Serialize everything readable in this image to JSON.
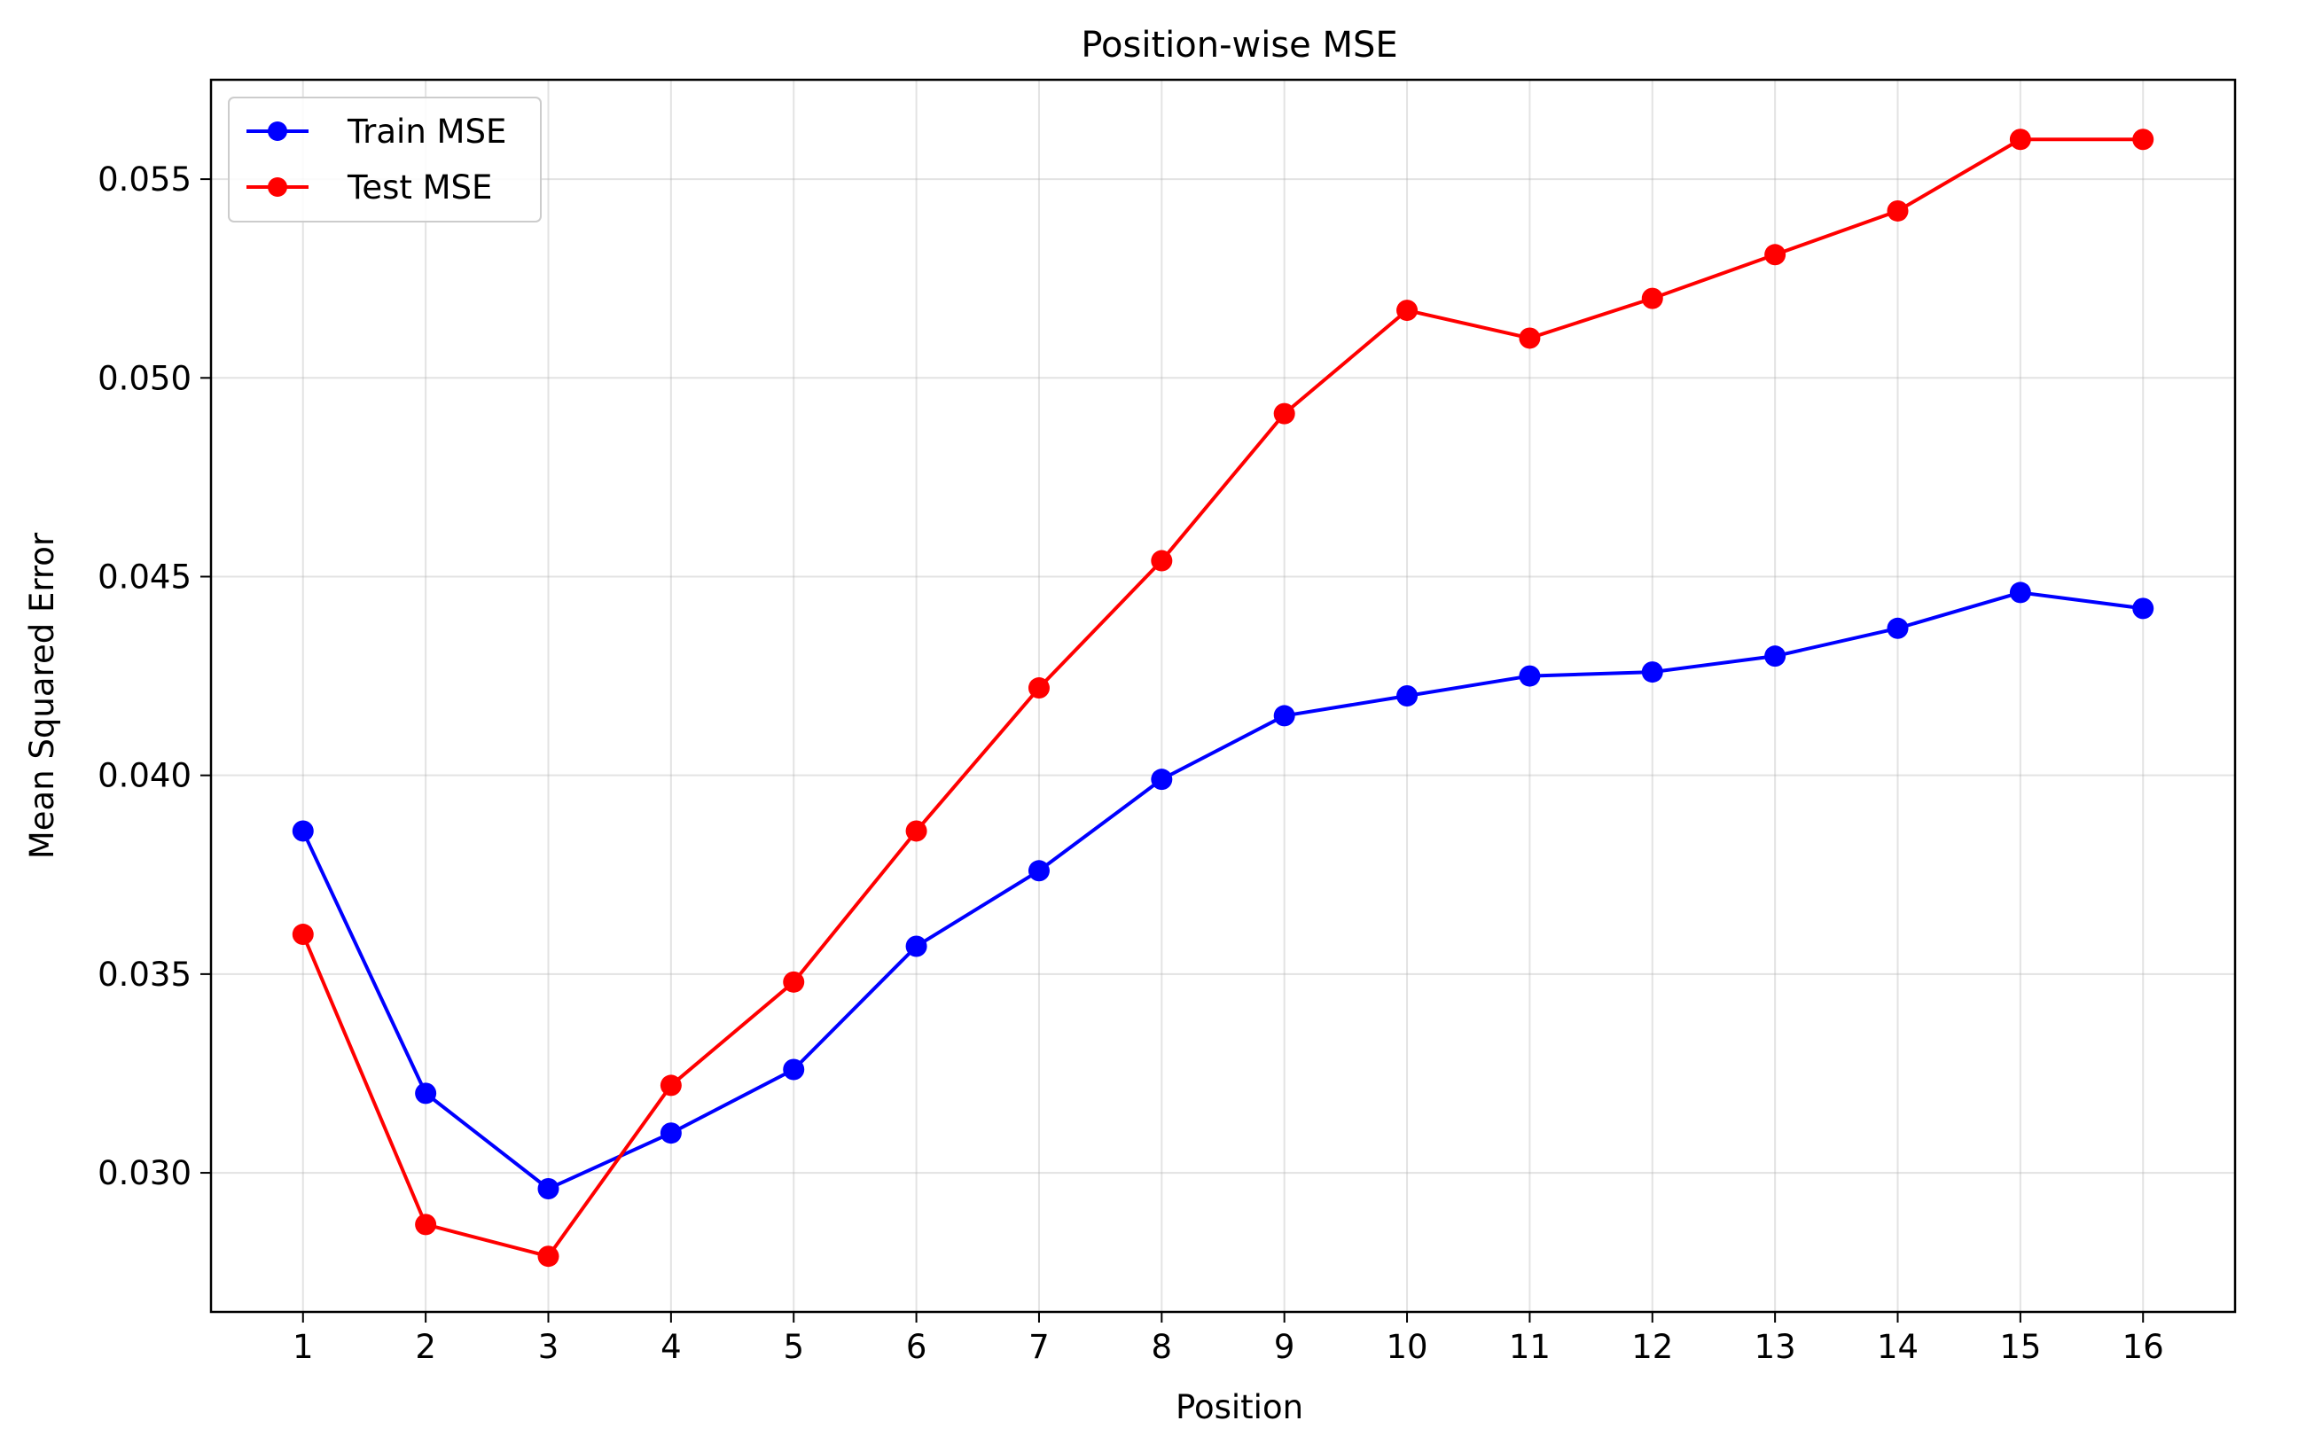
{
  "chart_data": {
    "type": "line",
    "title": "Position-wise MSE",
    "xlabel": "Position",
    "ylabel": "Mean Squared Error",
    "x": [
      1,
      2,
      3,
      4,
      5,
      6,
      7,
      8,
      9,
      10,
      11,
      12,
      13,
      14,
      15,
      16
    ],
    "xlim": [
      0.25,
      16.75
    ],
    "ylim": [
      0.0265,
      0.0575
    ],
    "yticks": [
      "0.030",
      "0.035",
      "0.040",
      "0.045",
      "0.050",
      "0.055"
    ],
    "ytick_values": [
      0.03,
      0.035,
      0.04,
      0.045,
      0.05,
      0.055
    ],
    "grid": true,
    "legend_position": "top-left",
    "series": [
      {
        "name": "Train MSE",
        "color": "#0000ff",
        "marker": "circle",
        "values": [
          0.0386,
          0.032,
          0.0296,
          0.031,
          0.0326,
          0.0357,
          0.0376,
          0.0399,
          0.0415,
          0.042,
          0.0425,
          0.0426,
          0.043,
          0.0437,
          0.0446,
          0.0442
        ]
      },
      {
        "name": "Test MSE",
        "color": "#ff0000",
        "marker": "circle",
        "values": [
          0.036,
          0.0287,
          0.0279,
          0.0322,
          0.0348,
          0.0386,
          0.0422,
          0.0454,
          0.0491,
          0.0517,
          0.051,
          0.052,
          0.0531,
          0.0542,
          0.056,
          0.056
        ]
      }
    ]
  }
}
